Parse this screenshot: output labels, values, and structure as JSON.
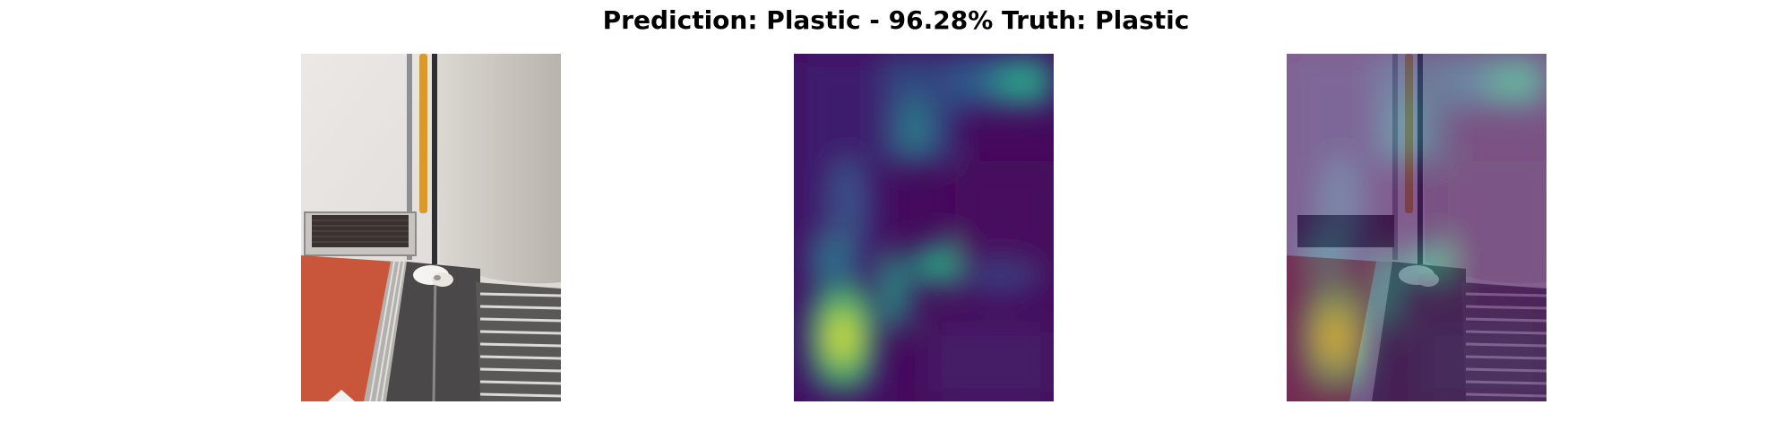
{
  "title": "Prediction: Plastic - 96.28% Truth: Plastic",
  "panels": [
    {
      "role": "original photo"
    },
    {
      "role": "activation heatmap",
      "colormap": "viridis"
    },
    {
      "role": "heatmap overlay on photo",
      "colormap": "viridis"
    }
  ],
  "colors": {
    "viridis_low": "#440154",
    "viridis_mid": "#21918c",
    "viridis_high": "#fde725",
    "floor_red": "#c9553a",
    "wall": "#e6e2df",
    "door_handle": "#d99a2b",
    "floor_mat": "#4a4848"
  }
}
